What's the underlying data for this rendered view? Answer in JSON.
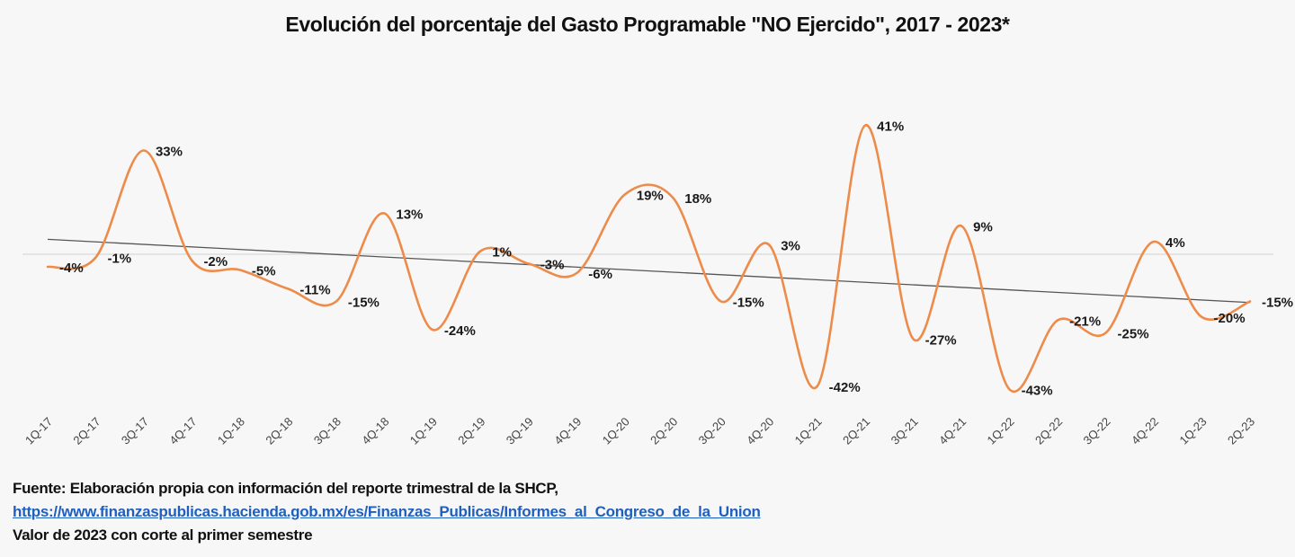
{
  "chart_data": {
    "type": "line",
    "title": "Evolución del porcentaje del Gasto Programable \"NO Ejercido\", 2017 - 2023*",
    "xlabel": "",
    "ylabel": "",
    "smooth": true,
    "grid": false,
    "zero_line": true,
    "trendline": "linear",
    "legend": "none",
    "ylim": [
      -45,
      45
    ],
    "categories": [
      "1Q-17",
      "2Q-17",
      "3Q-17",
      "4Q-17",
      "1Q-18",
      "2Q-18",
      "3Q-18",
      "4Q-18",
      "1Q-19",
      "2Q-19",
      "3Q-19",
      "4Q-19",
      "1Q-20",
      "2Q-20",
      "3Q-20",
      "4Q-20",
      "1Q-21",
      "2Q-21",
      "3Q-21",
      "4Q-21",
      "1Q-22",
      "2Q-22",
      "3Q-22",
      "4Q-22",
      "1Q-23",
      "2Q-23"
    ],
    "series": [
      {
        "name": "Gasto Programable NO Ejercido (%)",
        "color": "#ed8b4a",
        "values": [
          -4,
          -1,
          33,
          -2,
          -5,
          -11,
          -15,
          13,
          -24,
          1,
          -3,
          -6,
          19,
          18,
          -15,
          3,
          -42,
          41,
          -27,
          9,
          -43,
          -21,
          -25,
          4,
          -20,
          -15
        ],
        "labels": [
          "-4%",
          "-1%",
          "33%",
          "-2%",
          "-5%",
          "-11%",
          "-15%",
          "13%",
          "-24%",
          "1%",
          "-3%",
          "-6%",
          "19%",
          "18%",
          "-15%",
          "3%",
          "-42%",
          "41%",
          "-27%",
          "9%",
          "-43%",
          "-21%",
          "-25%",
          "4%",
          "-20%",
          "-15%"
        ]
      }
    ],
    "trendline_color": "#555555",
    "zero_line_color": "#d9d9d9"
  },
  "footer": {
    "source": "Fuente: Elaboración propia con información del reporte trimestral de la SHCP,",
    "link": "https://www.finanzaspublicas.hacienda.gob.mx/es/Finanzas_Publicas/Informes_al_Congreso_de_la_Union",
    "note": "Valor de 2023 con corte al primer semestre"
  }
}
